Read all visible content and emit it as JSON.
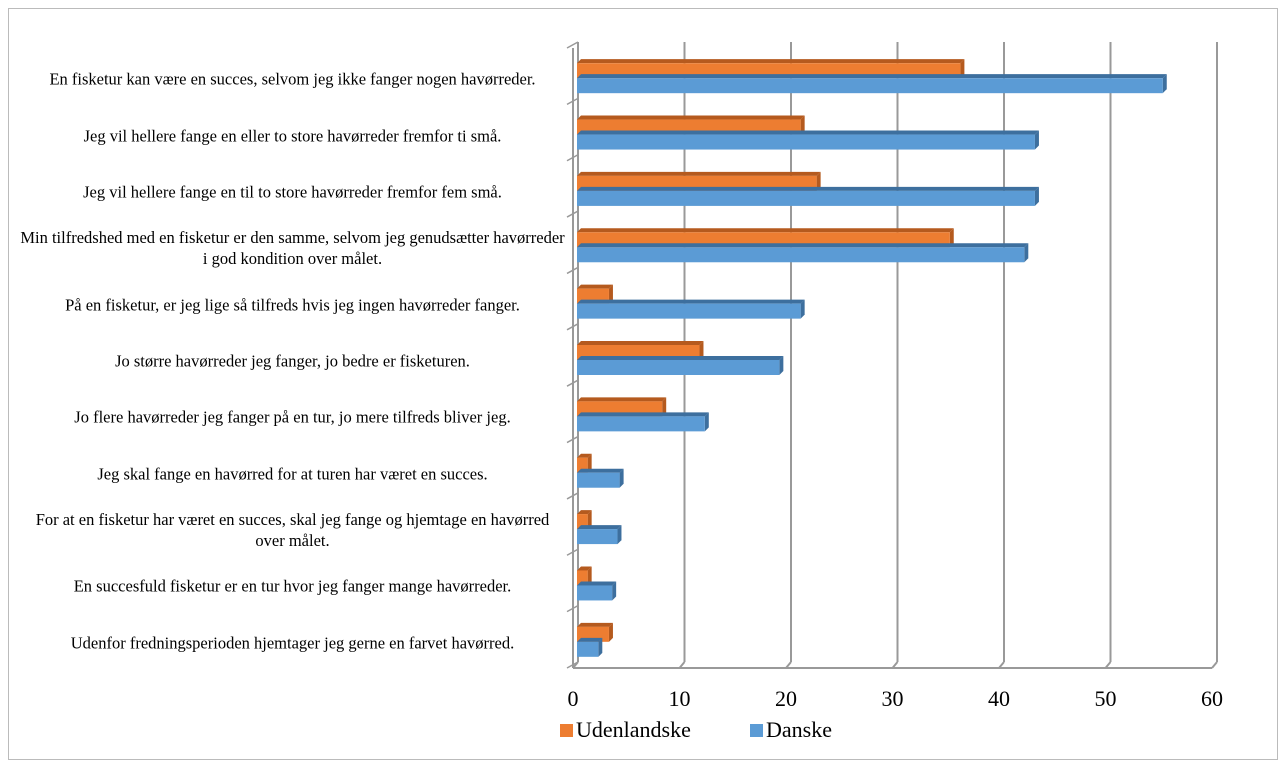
{
  "chart_data": {
    "type": "bar",
    "orientation": "horizontal",
    "categories": [
      "En fisketur kan være en succes, selvom jeg ikke fanger nogen havørreder.",
      "Jeg vil hellere fange en eller to store havørreder fremfor ti små.",
      "Jeg vil hellere fange en til to store havørreder fremfor fem små.",
      "Min tilfredshed med en fisketur er den samme, selvom jeg genudsætter havørreder i god kondition over målet.",
      "På en fisketur, er jeg lige så tilfreds hvis jeg ingen havørreder fanger.",
      "Jo større havørreder jeg fanger, jo bedre er fisketuren.",
      "Jo flere havørreder jeg fanger på en tur, jo mere tilfreds bliver jeg.",
      "Jeg skal fange en havørred for at turen har været en succes.",
      "For at en fisketur har været en succes, skal jeg fange og hjemtage en havørred over målet.",
      "En succesfuld fisketur er en tur hvor jeg fanger mange havørreder.",
      "Udenfor fredningsperioden hjemtager jeg gerne en farvet havørred."
    ],
    "series": [
      {
        "name": "Udenlandske",
        "color": "#ed7d31",
        "values": [
          36,
          21,
          22.5,
          35,
          3,
          11.5,
          8,
          1,
          1,
          1,
          3
        ]
      },
      {
        "name": "Danske",
        "color": "#5b9bd5",
        "values": [
          55,
          43,
          43,
          42,
          21,
          19,
          12,
          4,
          3.8,
          3.3,
          2
        ]
      }
    ],
    "xlim": [
      0,
      60
    ],
    "xticks": [
      0,
      10,
      20,
      30,
      40,
      50,
      60
    ],
    "grid": true,
    "legend": "bottom"
  }
}
